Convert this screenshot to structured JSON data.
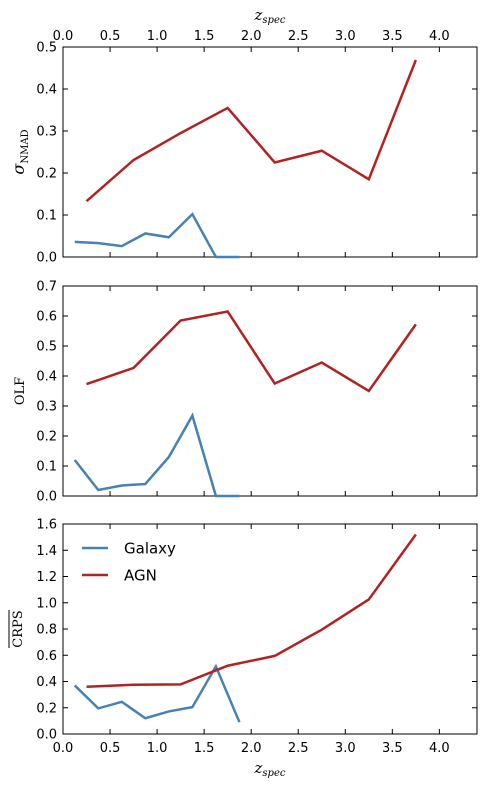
{
  "colors": {
    "galaxy": "#4682b4",
    "agn": "#b22222"
  },
  "top_xlabel": "z_spec",
  "bottom_xlabel": "z_spec",
  "chart_data": [
    {
      "type": "line",
      "ylabel": "σ_NMAD",
      "xlim": [
        0.0,
        4.4
      ],
      "ylim": [
        0.0,
        0.5
      ],
      "xticks": [
        "0.0",
        "0.5",
        "1.0",
        "1.5",
        "2.0",
        "2.5",
        "3.0",
        "3.5",
        "4.0"
      ],
      "yticks": [
        "0.0",
        "0.1",
        "0.2",
        "0.3",
        "0.4",
        "0.5"
      ],
      "series": [
        {
          "name": "Galaxy",
          "color": "#4682b4",
          "x": [
            0.125,
            0.375,
            0.625,
            0.875,
            1.125,
            1.375,
            1.625,
            1.875
          ],
          "y": [
            0.036,
            0.033,
            0.026,
            0.056,
            0.047,
            0.102,
            0.0,
            0.0
          ]
        },
        {
          "name": "AGN",
          "color": "#b22222",
          "x": [
            0.25,
            0.75,
            1.25,
            1.75,
            2.25,
            2.75,
            3.25,
            3.75
          ],
          "y": [
            0.133,
            0.231,
            0.295,
            0.355,
            0.225,
            0.253,
            0.185,
            0.469
          ]
        }
      ]
    },
    {
      "type": "line",
      "ylabel": "OLF",
      "xlim": [
        0.0,
        4.4
      ],
      "ylim": [
        0.0,
        0.7
      ],
      "xticks": [],
      "yticks": [
        "0.0",
        "0.1",
        "0.2",
        "0.3",
        "0.4",
        "0.5",
        "0.6",
        "0.7"
      ],
      "series": [
        {
          "name": "Galaxy",
          "color": "#4682b4",
          "x": [
            0.125,
            0.375,
            0.625,
            0.875,
            1.125,
            1.375,
            1.625,
            1.875
          ],
          "y": [
            0.12,
            0.02,
            0.035,
            0.04,
            0.13,
            0.268,
            0.0,
            0.0
          ]
        },
        {
          "name": "AGN",
          "color": "#b22222",
          "x": [
            0.25,
            0.75,
            1.25,
            1.75,
            2.25,
            2.75,
            3.25,
            3.75
          ],
          "y": [
            0.373,
            0.427,
            0.585,
            0.615,
            0.375,
            0.445,
            0.35,
            0.572
          ]
        }
      ]
    },
    {
      "type": "line",
      "ylabel": "CRPS",
      "xlim": [
        0.0,
        4.4
      ],
      "ylim": [
        0.0,
        1.6
      ],
      "xticks": [
        "0.0",
        "0.5",
        "1.0",
        "1.5",
        "2.0",
        "2.5",
        "3.0",
        "3.5",
        "4.0"
      ],
      "yticks": [
        "0.0",
        "0.2",
        "0.4",
        "0.6",
        "0.8",
        "1.0",
        "1.2",
        "1.4",
        "1.6"
      ],
      "legend": {
        "placement": "upper-left",
        "entries": [
          "Galaxy",
          "AGN"
        ]
      },
      "series": [
        {
          "name": "Galaxy",
          "color": "#4682b4",
          "x": [
            0.125,
            0.375,
            0.625,
            0.875,
            1.125,
            1.375,
            1.625,
            1.875
          ],
          "y": [
            0.37,
            0.195,
            0.245,
            0.12,
            0.172,
            0.205,
            0.515,
            0.09
          ]
        },
        {
          "name": "AGN",
          "color": "#b22222",
          "x": [
            0.25,
            0.75,
            1.25,
            1.75,
            2.25,
            2.75,
            3.25,
            3.75
          ],
          "y": [
            0.36,
            0.375,
            0.378,
            0.52,
            0.595,
            0.795,
            1.025,
            1.52
          ]
        }
      ]
    }
  ]
}
